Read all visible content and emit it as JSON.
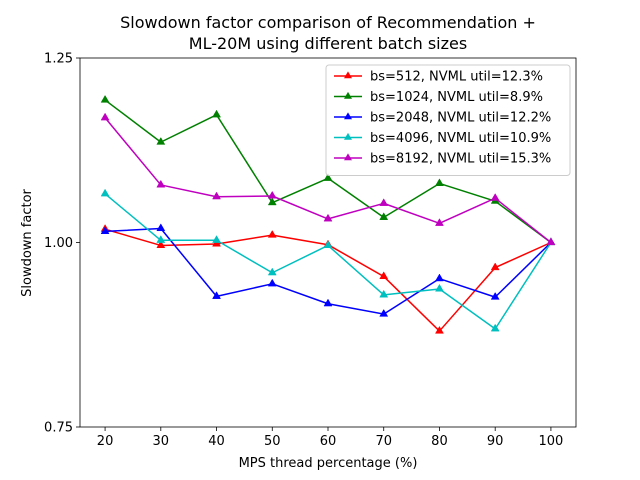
{
  "chart_data": {
    "type": "line",
    "title": [
      "Slowdown factor comparison of Recommendation +",
      "ML-20M using different batch sizes"
    ],
    "xlabel": "MPS thread percentage (%)",
    "ylabel": "Slowdown factor",
    "x": [
      20,
      30,
      40,
      50,
      60,
      70,
      80,
      90,
      100
    ],
    "xlim": [
      15.5,
      104.5
    ],
    "ylim": [
      0.75,
      1.25
    ],
    "yticks": [
      0.75,
      1.0,
      1.25
    ],
    "ytick_labels": [
      "0.75",
      "1.00",
      "1.25"
    ],
    "legend_position": "top-right",
    "marker": "triangle",
    "series": [
      {
        "name": "bs=512, NVML util=12.3%",
        "color": "#ff0000",
        "values": [
          1.018,
          0.996,
          0.998,
          1.01,
          0.997,
          0.954,
          0.88,
          0.966,
          1.0
        ]
      },
      {
        "name": "bs=1024, NVML util=8.9%",
        "color": "#008000",
        "values": [
          1.193,
          1.136,
          1.173,
          1.054,
          1.087,
          1.034,
          1.08,
          1.056,
          1.0
        ]
      },
      {
        "name": "bs=2048, NVML util=12.2%",
        "color": "#0000ff",
        "values": [
          1.015,
          1.019,
          0.927,
          0.944,
          0.917,
          0.903,
          0.951,
          0.926,
          1.0
        ]
      },
      {
        "name": "bs=4096, NVML util=10.9%",
        "color": "#00bfbf",
        "values": [
          1.066,
          1.003,
          1.003,
          0.959,
          0.996,
          0.929,
          0.937,
          0.883,
          1.0
        ]
      },
      {
        "name": "bs=8192, NVML util=15.3%",
        "color": "#bf00bf",
        "values": [
          1.169,
          1.078,
          1.062,
          1.063,
          1.032,
          1.053,
          1.026,
          1.06,
          1.0
        ]
      }
    ]
  }
}
